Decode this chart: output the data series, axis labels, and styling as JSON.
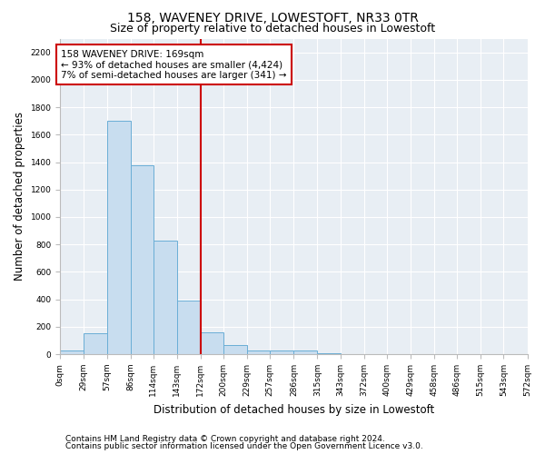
{
  "title1": "158, WAVENEY DRIVE, LOWESTOFT, NR33 0TR",
  "title2": "Size of property relative to detached houses in Lowestoft",
  "xlabel": "Distribution of detached houses by size in Lowestoft",
  "ylabel": "Number of detached properties",
  "bins": [
    0,
    29,
    57,
    86,
    114,
    143,
    172,
    200,
    229,
    257,
    286,
    315,
    343,
    372,
    400,
    429,
    458,
    486,
    515,
    543,
    572
  ],
  "tick_labels": [
    "0sqm",
    "29sqm",
    "57sqm",
    "86sqm",
    "114sqm",
    "143sqm",
    "172sqm",
    "200sqm",
    "229sqm",
    "257sqm",
    "286sqm",
    "315sqm",
    "343sqm",
    "372sqm",
    "400sqm",
    "429sqm",
    "458sqm",
    "486sqm",
    "515sqm",
    "543sqm",
    "572sqm"
  ],
  "bar_heights": [
    30,
    150,
    1700,
    1380,
    830,
    390,
    160,
    65,
    30,
    25,
    25,
    5,
    0,
    0,
    0,
    0,
    0,
    0,
    0,
    0
  ],
  "bar_color": "#c8ddef",
  "bar_edge_color": "#6aaed6",
  "vline_x": 172,
  "annotation_text": "158 WAVENEY DRIVE: 169sqm\n← 93% of detached houses are smaller (4,424)\n7% of semi-detached houses are larger (341) →",
  "annotation_box_color": "#ffffff",
  "annotation_box_edge": "#cc0000",
  "vline_color": "#cc0000",
  "ylim": [
    0,
    2300
  ],
  "yticks": [
    0,
    200,
    400,
    600,
    800,
    1000,
    1200,
    1400,
    1600,
    1800,
    2000,
    2200
  ],
  "footer1": "Contains HM Land Registry data © Crown copyright and database right 2024.",
  "footer2": "Contains public sector information licensed under the Open Government Licence v3.0.",
  "bg_color": "#ffffff",
  "plot_bg_color": "#e8eef4",
  "grid_color": "#ffffff",
  "title_fontsize": 10,
  "subtitle_fontsize": 9,
  "axis_label_fontsize": 8.5,
  "tick_fontsize": 6.5,
  "annot_fontsize": 7.5,
  "footer_fontsize": 6.5
}
